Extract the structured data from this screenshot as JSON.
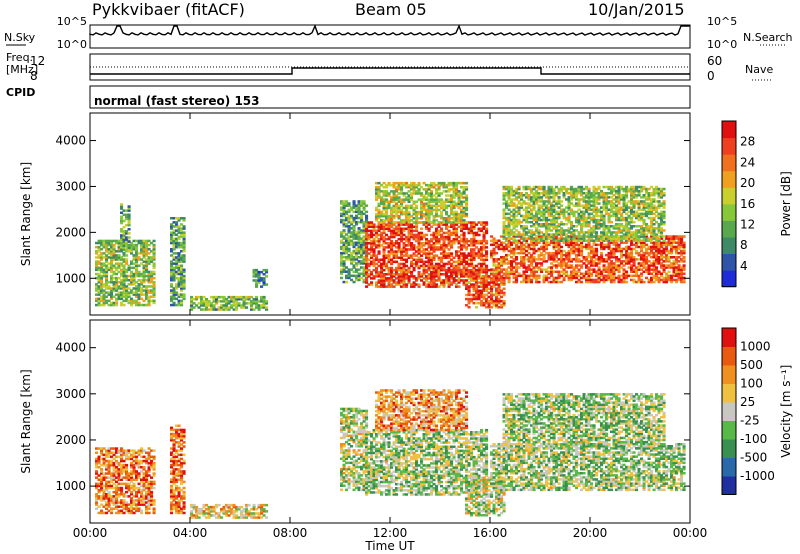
{
  "header": {
    "radar": "Pykkvibaer (fitACF)",
    "beam": "Beam 05",
    "date": "10/Jan/2015"
  },
  "params": {
    "nsky_label": "N.Sky",
    "nsky_ticks": [
      "10^5",
      "10^0"
    ],
    "nsearch_label": "N.Search",
    "nsearch_ticks": [
      "10^5",
      "10^0"
    ],
    "freq_label": [
      "Freq.",
      "[MHz]"
    ],
    "freq_ticks": [
      "12",
      "8"
    ],
    "nave_label": "Nave",
    "nave_ticks": [
      "60",
      "0"
    ],
    "cpid_label": "CPID",
    "cpid_text": "normal (fast stereo) 153"
  },
  "chart_data": [
    {
      "type": "heatmap",
      "name": "power-panel",
      "ylabel": "Slant Range [km]",
      "ylim": [
        200,
        4600
      ],
      "yticks": [
        1000,
        2000,
        3000,
        4000
      ],
      "xlim": [
        0,
        24
      ],
      "colorbar": {
        "label": "Power [dB]",
        "ticks": [
          "4",
          "8",
          "12",
          "16",
          "20",
          "24",
          "28"
        ],
        "colors": [
          "#1e2bd8",
          "#2e55a8",
          "#3f8a66",
          "#5aa84e",
          "#86c83a",
          "#c8cf2e",
          "#f0a020",
          "#f07020",
          "#ee4020",
          "#e01010"
        ]
      },
      "echo_regions": [
        {
          "t0": 0.2,
          "t1": 2.6,
          "r0": 400,
          "r1": 1800,
          "level": 0.45
        },
        {
          "t0": 1.2,
          "t1": 1.6,
          "r0": 1600,
          "r1": 2600,
          "level": 0.35
        },
        {
          "t0": 3.2,
          "t1": 3.8,
          "r0": 400,
          "r1": 2300,
          "level": 0.35
        },
        {
          "t0": 4.0,
          "t1": 7.0,
          "r0": 300,
          "r1": 600,
          "level": 0.4
        },
        {
          "t0": 6.5,
          "t1": 7.0,
          "r0": 800,
          "r1": 1200,
          "level": 0.3
        },
        {
          "t0": 10.0,
          "t1": 11.0,
          "r0": 900,
          "r1": 2700,
          "level": 0.35
        },
        {
          "t0": 11.0,
          "t1": 15.8,
          "r0": 800,
          "r1": 2200,
          "level": 0.85
        },
        {
          "t0": 11.4,
          "t1": 15.0,
          "r0": 2200,
          "r1": 3100,
          "level": 0.5
        },
        {
          "t0": 15.0,
          "t1": 16.6,
          "r0": 350,
          "r1": 1200,
          "level": 0.8
        },
        {
          "t0": 16.0,
          "t1": 23.8,
          "r0": 900,
          "r1": 1900,
          "level": 0.8
        },
        {
          "t0": 16.5,
          "t1": 23.0,
          "r0": 1800,
          "r1": 3000,
          "level": 0.45
        }
      ]
    },
    {
      "type": "heatmap",
      "name": "velocity-panel",
      "ylabel": "Slant Range [km]",
      "ylim": [
        200,
        4600
      ],
      "yticks": [
        1000,
        2000,
        3000,
        4000
      ],
      "xlim": [
        0,
        24
      ],
      "xticks": [
        "00:00",
        "04:00",
        "08:00",
        "12:00",
        "16:00",
        "20:00",
        "00:00"
      ],
      "xlabel": "Time UT",
      "colorbar": {
        "label": "Velocity [m s⁻¹]",
        "ticks": [
          "1000",
          "500",
          "100",
          "25",
          "-25",
          "-100",
          "-500",
          "-1000"
        ],
        "colors": [
          "#2030a0",
          "#2a6aa8",
          "#3a9050",
          "#58b848",
          "#c8c8c0",
          "#f0c040",
          "#f09020",
          "#e85a10",
          "#e01010"
        ]
      },
      "echo_regions": [
        {
          "t0": 0.2,
          "t1": 2.6,
          "r0": 400,
          "r1": 1800,
          "level": 0.75
        },
        {
          "t0": 3.2,
          "t1": 3.8,
          "r0": 400,
          "r1": 2300,
          "level": 0.8
        },
        {
          "t0": 4.0,
          "t1": 7.0,
          "r0": 300,
          "r1": 600,
          "level": 0.6
        },
        {
          "t0": 10.0,
          "t1": 11.0,
          "r0": 900,
          "r1": 2700,
          "level": 0.5
        },
        {
          "t0": 11.0,
          "t1": 15.8,
          "r0": 800,
          "r1": 2200,
          "level": 0.45
        },
        {
          "t0": 11.4,
          "t1": 15.0,
          "r0": 2200,
          "r1": 3100,
          "level": 0.7
        },
        {
          "t0": 15.0,
          "t1": 16.6,
          "r0": 350,
          "r1": 1200,
          "level": 0.5
        },
        {
          "t0": 16.0,
          "t1": 23.8,
          "r0": 900,
          "r1": 1900,
          "level": 0.45
        },
        {
          "t0": 16.5,
          "t1": 23.0,
          "r0": 1800,
          "r1": 3000,
          "level": 0.45
        }
      ]
    }
  ]
}
